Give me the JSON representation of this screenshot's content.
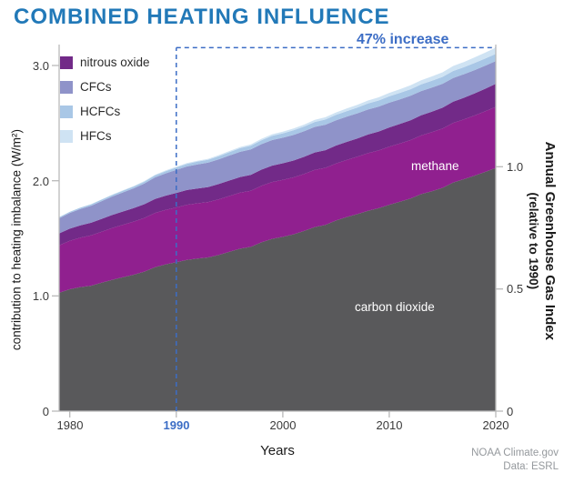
{
  "title": "COMBINED HEATING INFLUENCE",
  "footer": {
    "credit": "NOAA Climate.gov",
    "source": "Data: ESRL"
  },
  "chart_data": {
    "type": "area",
    "stacked": true,
    "title": "COMBINED HEATING INFLUENCE",
    "xlabel": "Years",
    "ylabel_left": "contribution to heating imbalance (W/m²)",
    "ylabel_right_line1": "Annual Greenhouse Gas Index",
    "ylabel_right_line2": "(relative to 1990)",
    "ylim_left": [
      0,
      3.2
    ],
    "legend_position": "top-left-inside",
    "x_tick_labels": [
      "1980",
      "1990",
      "2000",
      "2010",
      "2020"
    ],
    "y_left_tick_labels": [
      "3.0",
      "2.0",
      "1.0",
      "0"
    ],
    "y_right_tick_labels": [
      "1.0",
      "0.5",
      "0"
    ],
    "x_tick_values": [
      1980,
      1990,
      2000,
      2010,
      2020
    ],
    "left_tick_values": [
      0,
      1,
      2,
      3
    ],
    "right_tick_values": [
      0,
      0.5,
      1
    ],
    "right_axis": {
      "reference_year": 1990
    },
    "annotation": {
      "year": 1990,
      "label": "47% increase",
      "increase_percent": 47
    },
    "colors": {
      "title": "#2279b8",
      "annotation": "#3c6dc5",
      "axis": "#b9b9b9",
      "tick_text": "#3a3a3a"
    },
    "x": [
      1979,
      1980,
      1981,
      1982,
      1983,
      1984,
      1985,
      1986,
      1987,
      1988,
      1989,
      1990,
      1991,
      1992,
      1993,
      1994,
      1995,
      1996,
      1997,
      1998,
      1999,
      2000,
      2001,
      2002,
      2003,
      2004,
      2005,
      2006,
      2007,
      2008,
      2009,
      2010,
      2011,
      2012,
      2013,
      2014,
      2015,
      2016,
      2017,
      2018,
      2019,
      2020
    ],
    "series": [
      {
        "id": "carbon-dioxide",
        "name": "carbon dioxide",
        "color": "#59595b",
        "values": [
          1.027,
          1.058,
          1.077,
          1.089,
          1.115,
          1.14,
          1.162,
          1.184,
          1.211,
          1.25,
          1.274,
          1.293,
          1.313,
          1.324,
          1.334,
          1.356,
          1.383,
          1.41,
          1.426,
          1.465,
          1.495,
          1.513,
          1.535,
          1.564,
          1.598,
          1.616,
          1.655,
          1.685,
          1.71,
          1.739,
          1.761,
          1.791,
          1.818,
          1.846,
          1.884,
          1.909,
          1.938,
          1.985,
          2.013,
          2.044,
          2.076,
          2.111
        ]
      },
      {
        "id": "methane",
        "name": "methane",
        "color": "#90208f",
        "values": [
          0.412,
          0.42,
          0.429,
          0.437,
          0.443,
          0.45,
          0.456,
          0.461,
          0.466,
          0.47,
          0.472,
          0.475,
          0.478,
          0.48,
          0.481,
          0.483,
          0.485,
          0.486,
          0.487,
          0.491,
          0.494,
          0.494,
          0.494,
          0.495,
          0.496,
          0.496,
          0.495,
          0.495,
          0.498,
          0.5,
          0.502,
          0.504,
          0.505,
          0.507,
          0.509,
          0.512,
          0.515,
          0.517,
          0.519,
          0.522,
          0.526,
          0.53
        ]
      },
      {
        "id": "nitrous-oxide",
        "name": "nitrous oxide",
        "color": "#722a88",
        "values": [
          0.104,
          0.106,
          0.107,
          0.109,
          0.111,
          0.113,
          0.115,
          0.117,
          0.119,
          0.122,
          0.124,
          0.126,
          0.128,
          0.129,
          0.13,
          0.132,
          0.134,
          0.136,
          0.138,
          0.14,
          0.142,
          0.144,
          0.146,
          0.148,
          0.151,
          0.153,
          0.155,
          0.157,
          0.159,
          0.162,
          0.164,
          0.167,
          0.17,
          0.172,
          0.175,
          0.178,
          0.181,
          0.184,
          0.188,
          0.192,
          0.196,
          0.2
        ]
      },
      {
        "id": "cfcs",
        "name": "CFCs",
        "color": "#8f93c9",
        "values": [
          0.131,
          0.136,
          0.142,
          0.148,
          0.154,
          0.16,
          0.166,
          0.172,
          0.179,
          0.187,
          0.194,
          0.2,
          0.205,
          0.209,
          0.212,
          0.215,
          0.217,
          0.219,
          0.22,
          0.221,
          0.222,
          0.222,
          0.222,
          0.222,
          0.222,
          0.221,
          0.22,
          0.219,
          0.218,
          0.217,
          0.216,
          0.215,
          0.213,
          0.212,
          0.21,
          0.209,
          0.207,
          0.206,
          0.204,
          0.202,
          0.2,
          0.198
        ]
      },
      {
        "id": "hcfcs",
        "name": "HCFCs",
        "color": "#a9c7e6",
        "values": [
          0.009,
          0.01,
          0.011,
          0.012,
          0.013,
          0.014,
          0.015,
          0.016,
          0.017,
          0.018,
          0.019,
          0.021,
          0.022,
          0.024,
          0.025,
          0.027,
          0.029,
          0.031,
          0.032,
          0.034,
          0.036,
          0.038,
          0.04,
          0.041,
          0.043,
          0.045,
          0.047,
          0.048,
          0.05,
          0.052,
          0.053,
          0.055,
          0.056,
          0.057,
          0.058,
          0.059,
          0.06,
          0.061,
          0.061,
          0.062,
          0.062,
          0.062
        ]
      },
      {
        "id": "hfcs",
        "name": "HFCs",
        "color": "#cfe3f3",
        "values": [
          0.001,
          0.001,
          0.002,
          0.002,
          0.003,
          0.003,
          0.004,
          0.004,
          0.005,
          0.005,
          0.006,
          0.006,
          0.007,
          0.007,
          0.008,
          0.009,
          0.01,
          0.011,
          0.012,
          0.013,
          0.014,
          0.015,
          0.016,
          0.017,
          0.018,
          0.02,
          0.021,
          0.023,
          0.024,
          0.026,
          0.028,
          0.03,
          0.032,
          0.034,
          0.036,
          0.038,
          0.04,
          0.043,
          0.045,
          0.048,
          0.051,
          0.054
        ]
      }
    ]
  }
}
